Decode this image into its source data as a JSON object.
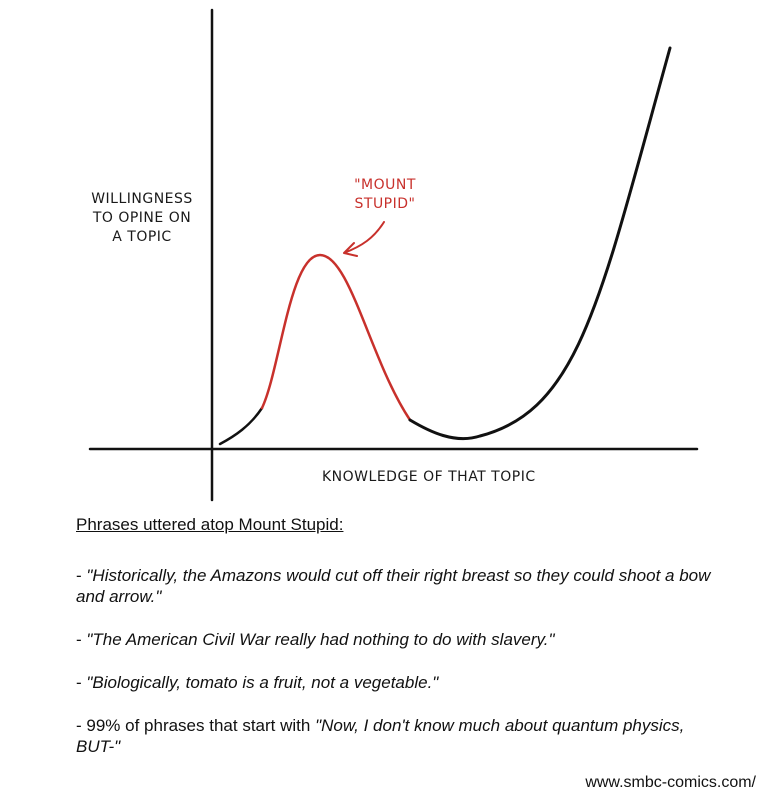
{
  "diagram": {
    "y_axis_label_lines": [
      "WILLINGNESS",
      "TO OPINE ON",
      "A TOPIC"
    ],
    "x_axis_label": "KNOWLEDGE OF THAT TOPIC",
    "annotation_lines": [
      "\"MOUNT",
      "STUPID\""
    ],
    "colors": {
      "axis": "#111111",
      "curve": "#111111",
      "mount_stupid_curve": "#c8312c",
      "annotation": "#c8312c"
    }
  },
  "phrases": {
    "heading": "Phrases uttered atop Mount Stupid:",
    "items": [
      {
        "prefix": "- ",
        "quote": "\"Historically, the Amazons would cut off their right breast so they could shoot a bow and arrow.\""
      },
      {
        "prefix": "- ",
        "quote": "\"The American Civil War really had nothing to do with slavery.\""
      },
      {
        "prefix": "- ",
        "quote": "\"Biologically, tomato is a fruit, not a vegetable.\""
      },
      {
        "prefix": "- 99% of phrases that start with ",
        "quote": "\"Now, I don't know much about quantum physics, BUT-\""
      }
    ]
  },
  "footer": {
    "website": "www.smbc-comics.com/"
  }
}
